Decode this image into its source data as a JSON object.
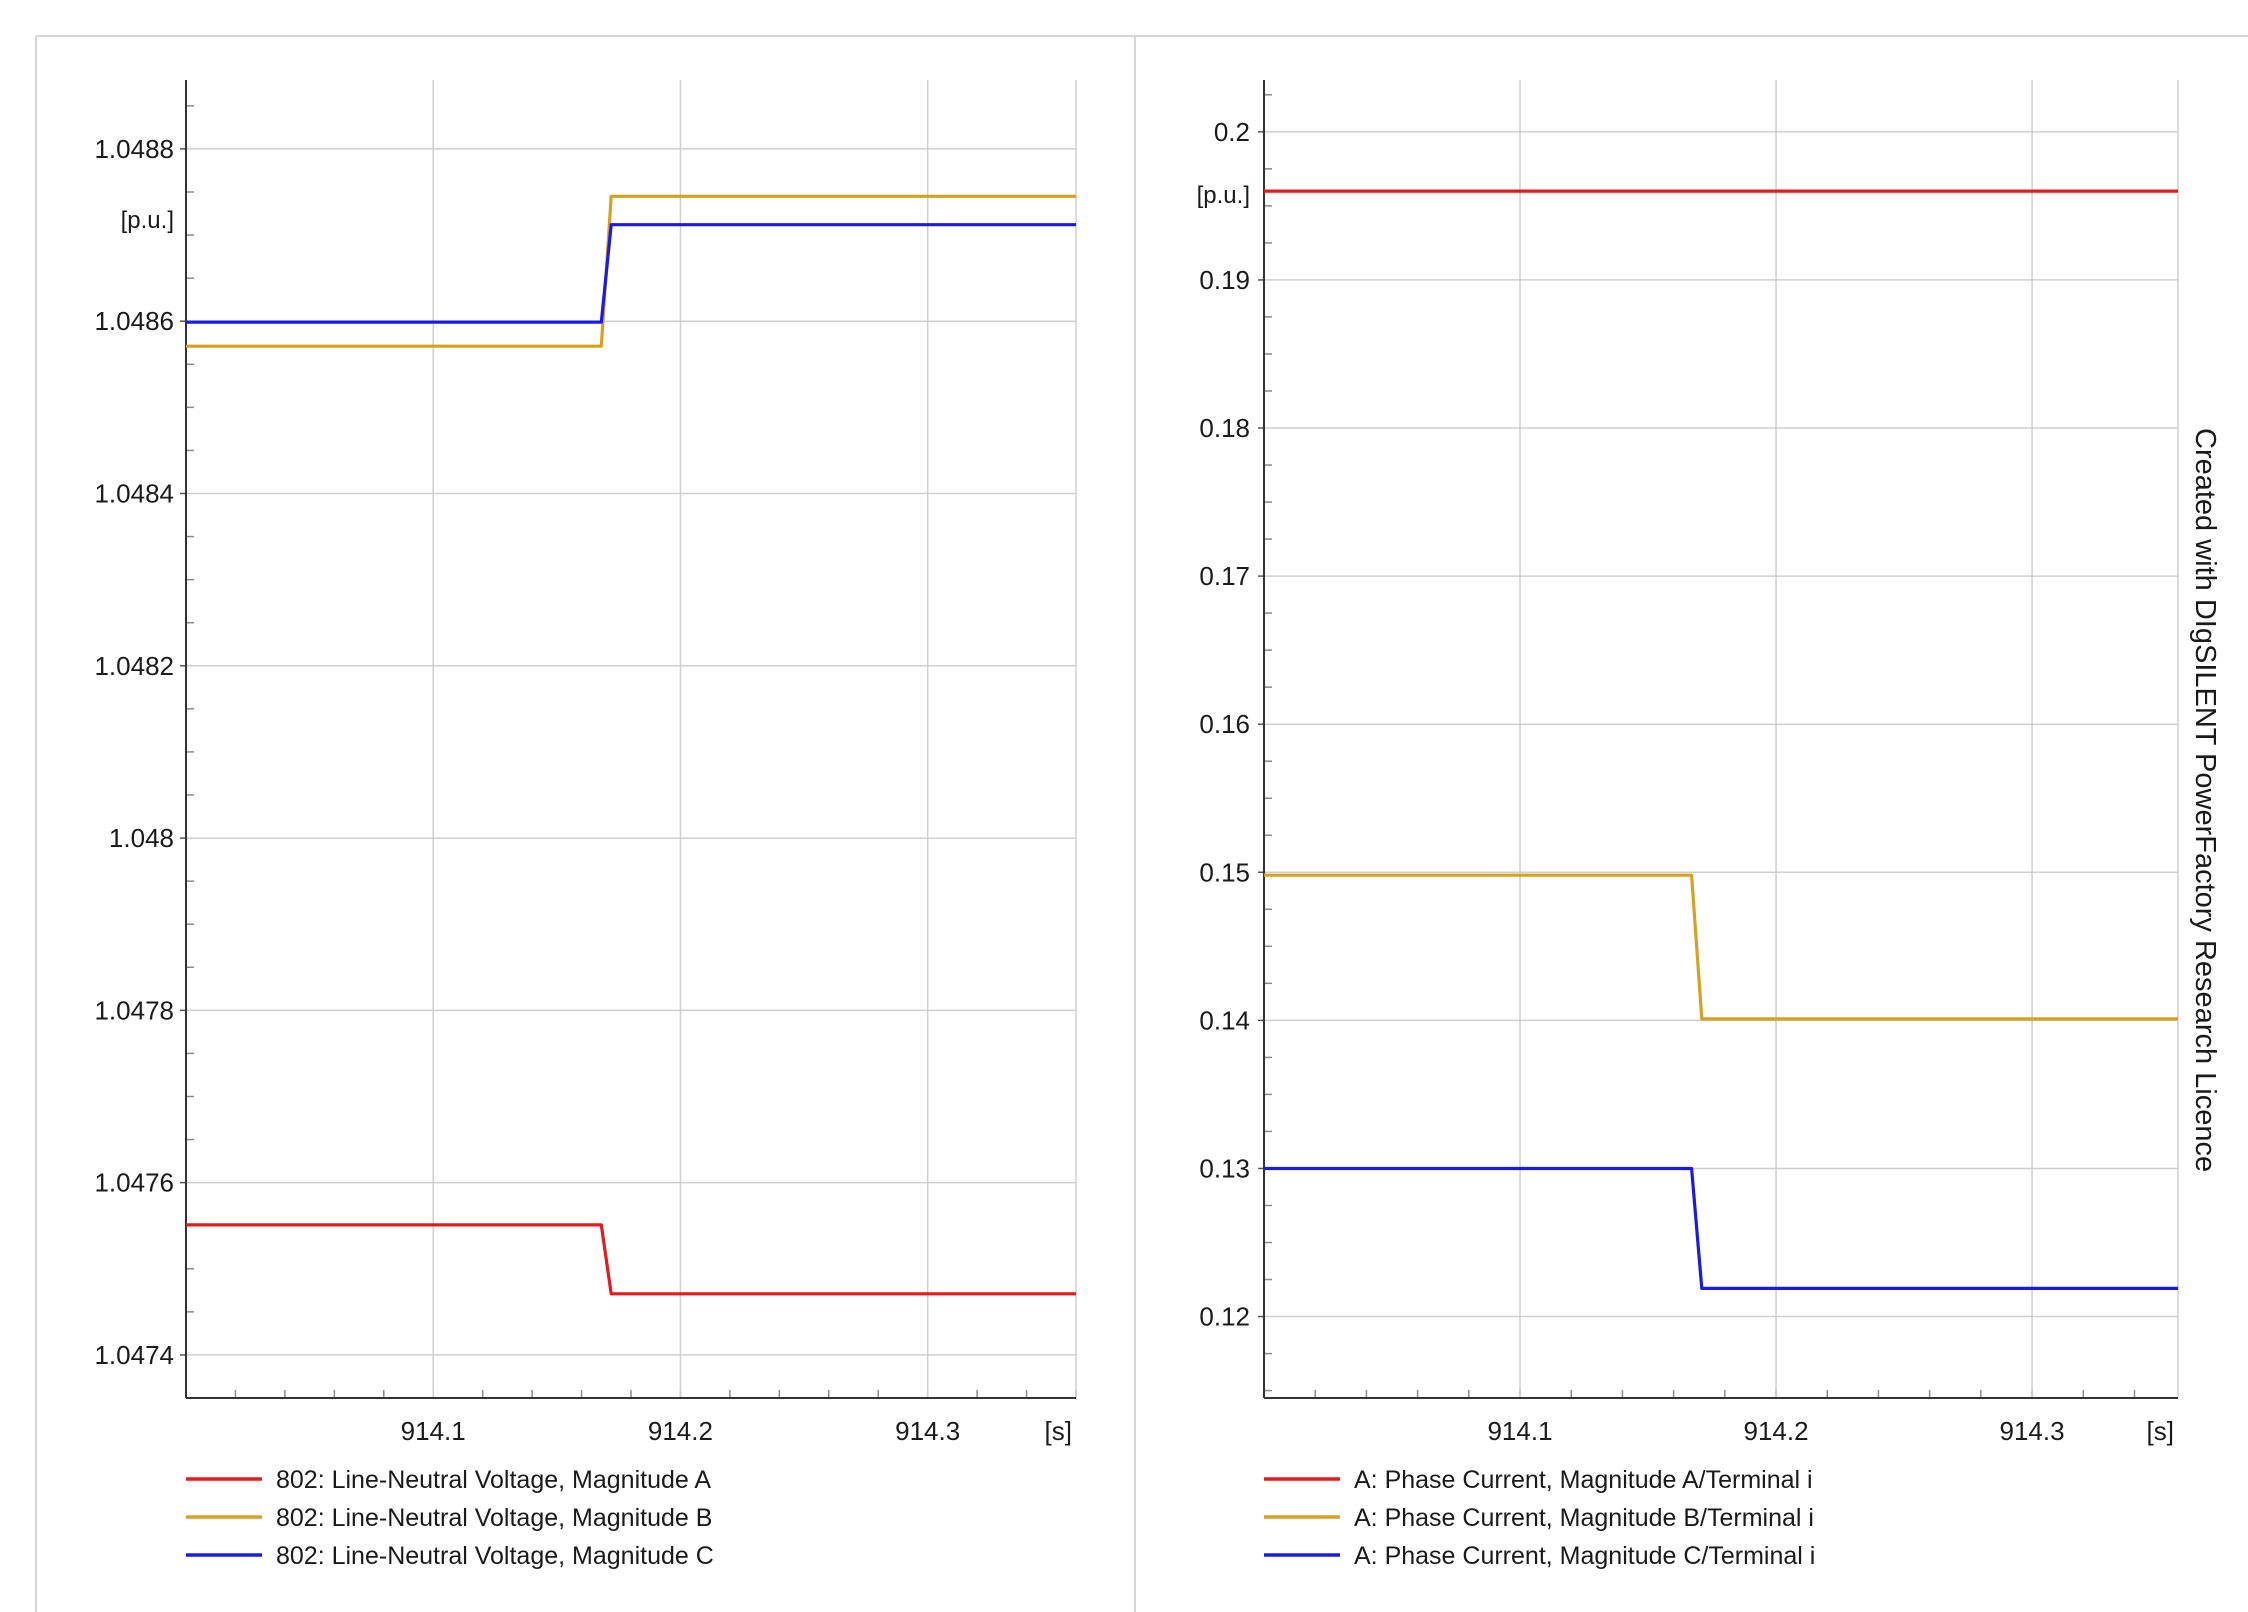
{
  "watermark": "Created with DIgSILENT PowerFactory Research Licence",
  "chart_data": [
    {
      "type": "line",
      "xunit": "[s]",
      "yunit": "[p.u.]",
      "xlim": [
        914.0,
        914.36
      ],
      "ylim": [
        1.04735,
        1.04888
      ],
      "xticks": [
        914.1,
        914.2,
        914.3
      ],
      "xtick_labels": [
        "914.1",
        "914.2",
        "914.3"
      ],
      "yticks": [
        1.0474,
        1.0476,
        1.0478,
        1.048,
        1.0482,
        1.0484,
        1.0486,
        1.0488
      ],
      "ytick_labels": [
        "1.0474",
        "1.0476",
        "1.0478",
        "1.048",
        "1.0482",
        "1.0484",
        "1.0486",
        "1.0488"
      ],
      "grid": true,
      "legend": "bottom",
      "series": [
        {
          "name": "802: Line-Neutral Voltage, Magnitude A",
          "color": "#e41a1c",
          "x": [
            914.0,
            914.168,
            914.172,
            914.36
          ],
          "y": [
            1.047551,
            1.047551,
            1.047471,
            1.047471
          ]
        },
        {
          "name": "802: Line-Neutral Voltage, Magnitude B",
          "color": "#d9a020",
          "x": [
            914.0,
            914.168,
            914.172,
            914.36
          ],
          "y": [
            1.048571,
            1.048571,
            1.048745,
            1.048745
          ]
        },
        {
          "name": "802: Line-Neutral Voltage, Magnitude C",
          "color": "#1a1ae6",
          "x": [
            914.0,
            914.168,
            914.172,
            914.36
          ],
          "y": [
            1.048599,
            1.048599,
            1.048712,
            1.048712
          ]
        }
      ]
    },
    {
      "type": "line",
      "xunit": "[s]",
      "yunit": "[p.u.]",
      "xlim": [
        914.0,
        914.357
      ],
      "ylim": [
        0.1145,
        0.2035
      ],
      "xticks": [
        914.1,
        914.2,
        914.3
      ],
      "xtick_labels": [
        "914.1",
        "914.2",
        "914.3"
      ],
      "yticks": [
        0.12,
        0.13,
        0.14,
        0.15,
        0.16,
        0.17,
        0.18,
        0.19,
        0.2
      ],
      "ytick_labels": [
        "0.12",
        "0.13",
        "0.14",
        "0.15",
        "0.16",
        "0.17",
        "0.18",
        "0.19",
        "0.2"
      ],
      "grid": true,
      "legend": "bottom",
      "series": [
        {
          "name": "A: Phase Current, Magnitude A/Terminal i",
          "color": "#e41a1c",
          "x": [
            914.0,
            914.357
          ],
          "y": [
            0.196,
            0.196
          ]
        },
        {
          "name": "A: Phase Current, Magnitude B/Terminal i",
          "color": "#d9a020",
          "x": [
            914.0,
            914.167,
            914.171,
            914.357
          ],
          "y": [
            0.1498,
            0.1498,
            0.1401,
            0.1401
          ]
        },
        {
          "name": "A: Phase Current, Magnitude C/Terminal i",
          "color": "#1a1ae6",
          "x": [
            914.0,
            914.167,
            914.171,
            914.357
          ],
          "y": [
            0.13,
            0.13,
            0.1219,
            0.1219
          ]
        }
      ]
    }
  ]
}
